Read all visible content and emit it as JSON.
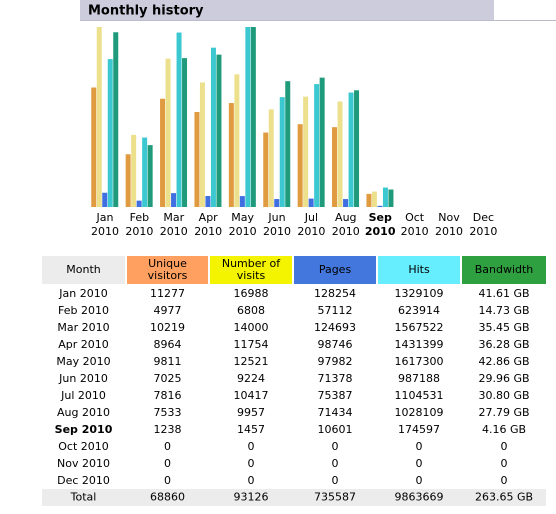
{
  "header": {
    "title": "Monthly history"
  },
  "table": {
    "month_header": "Month",
    "columns": [
      {
        "name": "Unique visitors",
        "color": "#ffa060",
        "bar_color": "#e09a40"
      },
      {
        "name": "Number of visits",
        "color": "#f4f400",
        "bar_color": "#ece08c"
      },
      {
        "name": "Pages",
        "color": "#4477dd",
        "bar_color": "#3f6fe0"
      },
      {
        "name": "Hits",
        "color": "#66eeff",
        "bar_color": "#3cc8d0"
      },
      {
        "name": "Bandwidth",
        "color": "#2ea040",
        "bar_color": "#1f9a7a"
      }
    ],
    "rows": [
      {
        "month": "Jan 2010",
        "chart_month": "Jan",
        "chart_year": "2010",
        "values": [
          11277,
          16988,
          128254,
          1329109,
          {
            "value": 41.61,
            "label": "41.61 GB"
          }
        ]
      },
      {
        "month": "Feb 2010",
        "chart_month": "Feb",
        "chart_year": "2010",
        "values": [
          4977,
          6808,
          57112,
          623914,
          {
            "value": 14.73,
            "label": "14.73 GB"
          }
        ]
      },
      {
        "month": "Mar 2010",
        "chart_month": "Mar",
        "chart_year": "2010",
        "values": [
          10219,
          14000,
          124693,
          1567522,
          {
            "value": 35.45,
            "label": "35.45 GB"
          }
        ]
      },
      {
        "month": "Apr 2010",
        "chart_month": "Apr",
        "chart_year": "2010",
        "values": [
          8964,
          11754,
          98746,
          1431399,
          {
            "value": 36.28,
            "label": "36.28 GB"
          }
        ]
      },
      {
        "month": "May 2010",
        "chart_month": "May",
        "chart_year": "2010",
        "values": [
          9811,
          12521,
          97982,
          1617300,
          {
            "value": 42.86,
            "label": "42.86 GB"
          }
        ]
      },
      {
        "month": "Jun 2010",
        "chart_month": "Jun",
        "chart_year": "2010",
        "values": [
          7025,
          9224,
          71378,
          987188,
          {
            "value": 29.96,
            "label": "29.96 GB"
          }
        ]
      },
      {
        "month": "Jul 2010",
        "chart_month": "Jul",
        "chart_year": "2010",
        "values": [
          7816,
          10417,
          75387,
          1104531,
          {
            "value": 30.8,
            "label": "30.80 GB"
          }
        ]
      },
      {
        "month": "Aug 2010",
        "chart_month": "Aug",
        "chart_year": "2010",
        "values": [
          7533,
          9957,
          71434,
          1028109,
          {
            "value": 27.79,
            "label": "27.79 GB"
          }
        ]
      },
      {
        "month": "Sep 2010",
        "chart_month": "Sep",
        "chart_year": "2010",
        "current": true,
        "values": [
          1238,
          1457,
          10601,
          174597,
          {
            "value": 4.16,
            "label": "4.16 GB"
          }
        ]
      },
      {
        "month": "Oct 2010",
        "chart_month": "Oct",
        "chart_year": "2010",
        "values": [
          0,
          0,
          0,
          0,
          0
        ]
      },
      {
        "month": "Nov 2010",
        "chart_month": "Nov",
        "chart_year": "2010",
        "values": [
          0,
          0,
          0,
          0,
          0
        ]
      },
      {
        "month": "Dec 2010",
        "chart_month": "Dec",
        "chart_year": "2010",
        "values": [
          0,
          0,
          0,
          0,
          0
        ]
      }
    ],
    "total": {
      "month": "Total",
      "values": [
        68860,
        93126,
        735587,
        9863669,
        {
          "value": 263.65,
          "label": "263.65 GB"
        }
      ]
    }
  }
}
